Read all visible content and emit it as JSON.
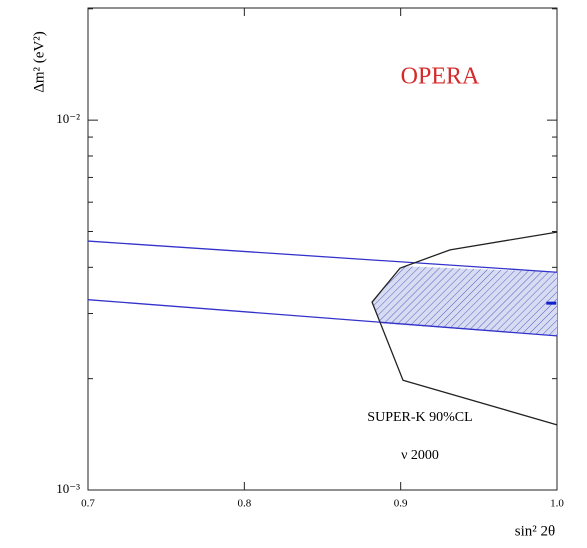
{
  "chart_data": {
    "type": "line",
    "title": "OPERA",
    "annotations": [
      "SUPER-K 90%CL",
      "ν 2000"
    ],
    "x_label": "sin² 2θ",
    "y_label": "Δm² (eV²)",
    "xlim": [
      0.7,
      1.0
    ],
    "xticks": [
      0.7,
      0.8,
      0.9,
      {
        "value": 1,
        "label": "1.0"
      }
    ],
    "ylim": [
      0.001,
      0.0201
    ],
    "yticks": [
      {
        "value": 0.001,
        "label": "10⁻³"
      },
      {
        "value": 0.01,
        "label": "10⁻²"
      }
    ],
    "yminorticks": [
      0.002,
      0.003,
      0.004,
      0.005,
      0.006,
      0.007,
      0.008,
      0.009,
      0.02
    ],
    "log_y": true,
    "series": [
      {
        "style": "fill",
        "color": "#3333cc",
        "x": [
          0.9015,
          1.0,
          1.0,
          0.8868,
          0.8817
        ],
        "values": [
          0.00403,
          0.00388,
          0.00261,
          0.00282,
          0.00322
        ]
      },
      {
        "style": "line",
        "color": "#3333cc",
        "x": [
          0.7,
          1.0
        ],
        "values": [
          0.00471,
          0.00388
        ]
      },
      {
        "style": "line",
        "color": "#3333cc",
        "x": [
          0.7,
          1.0
        ],
        "values": [
          0.00327,
          0.00261
        ]
      },
      {
        "style": "line",
        "color": "#222222",
        "x": [
          1.0,
          0.9316,
          0.8996,
          0.8817,
          0.9015,
          1.0
        ],
        "values": [
          0.00498,
          0.00446,
          0.00398,
          0.00322,
          0.00198,
          0.0015
        ]
      },
      {
        "style": "marker",
        "color": "#1122cc",
        "x": [
          0.997
        ],
        "values": [
          0.0032
        ]
      }
    ]
  }
}
